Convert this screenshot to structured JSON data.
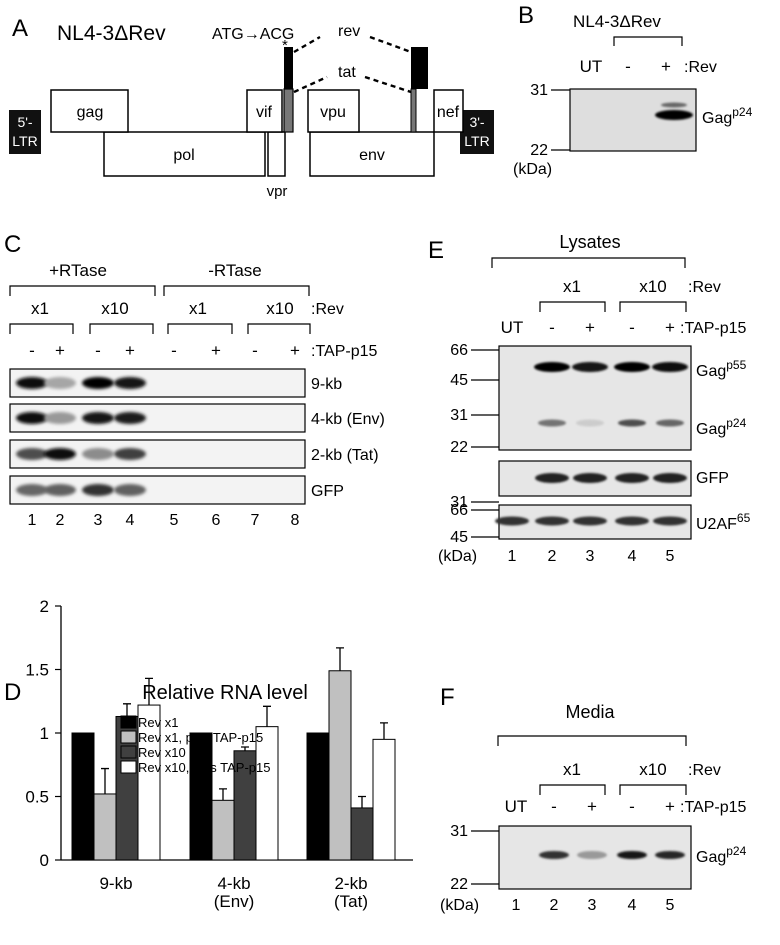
{
  "panelA": {
    "label": "A",
    "title": "NL4-3ΔRev",
    "mutation": "ATG→ACG",
    "asterisk": "*",
    "rev_label": "rev",
    "tat_label": "tat",
    "ltr5": [
      "5'-",
      "LTR"
    ],
    "ltr3": [
      "3'-",
      "LTR"
    ],
    "genes": {
      "gag": "gag",
      "pol": "pol",
      "vif": "vif",
      "vpr": "vpr",
      "vpu": "vpu",
      "env": "env",
      "nef": "nef"
    }
  },
  "panelB": {
    "label": "B",
    "title": "NL4-3ΔRev",
    "lanes": [
      "UT",
      "-",
      "+"
    ],
    "row_label": ":Rev",
    "markers": [
      "31",
      "22",
      "(kDa)"
    ],
    "band": "Gag",
    "band_sup": "p24"
  },
  "panelC": {
    "label": "C",
    "groups": [
      "+RTase",
      "-RTase"
    ],
    "rev": [
      "x1",
      "x10",
      "x1",
      "x10"
    ],
    "rev_label": ":Rev",
    "tap": [
      "-",
      "+",
      "-",
      "+",
      "-",
      "+",
      "-",
      "+"
    ],
    "tap_label": ":TAP-p15",
    "rows": [
      "9-kb",
      "4-kb (Env)",
      "2-kb (Tat)",
      "GFP"
    ],
    "lane_numbers": [
      "1",
      "2",
      "3",
      "4",
      "5",
      "6",
      "7",
      "8"
    ]
  },
  "panelD": {
    "label": "D"
  },
  "chart_data": {
    "type": "bar",
    "title": "Relative RNA level",
    "categories": [
      "9-kb",
      "4-kb (Env)",
      "2-kb (Tat)"
    ],
    "series": [
      {
        "name": "Rev x1",
        "color": "#000000",
        "values": [
          1.0,
          1.0,
          1.0
        ],
        "errors": [
          0,
          0,
          0
        ]
      },
      {
        "name": "Rev x1, plus TAP-p15",
        "color": "#c0c0c0",
        "values": [
          0.52,
          0.47,
          1.49
        ],
        "errors": [
          0.2,
          0.09,
          0.18
        ]
      },
      {
        "name": "Rev x10",
        "color": "#404040",
        "values": [
          1.13,
          0.86,
          0.41
        ],
        "errors": [
          0.1,
          0.03,
          0.09
        ]
      },
      {
        "name": "Rev x10, plus TAP-p15",
        "color": "#ffffff",
        "values": [
          1.22,
          1.05,
          0.95
        ],
        "errors": [
          0.21,
          0.16,
          0.13
        ]
      }
    ],
    "yticks": [
      "0",
      "0.5",
      "1",
      "1.5",
      "2"
    ],
    "ylim": [
      0,
      2
    ],
    "legend": "top-left",
    "grid": false
  },
  "panelE": {
    "label": "E",
    "header": "Lysates",
    "rev": [
      "x1",
      "x10"
    ],
    "rev_label": ":Rev",
    "lanes": [
      "UT",
      "-",
      "+",
      "-",
      "+"
    ],
    "tap_label": ":TAP-p15",
    "markers_main": [
      "66",
      "45",
      "31",
      "22"
    ],
    "bands": [
      [
        "Gag",
        "p55"
      ],
      [
        "Gag",
        "p24"
      ]
    ],
    "gfp_label": "GFP",
    "gfp_marker": "31",
    "u2af_label": "U2AF",
    "u2af_sup": "65",
    "markers_u2af": [
      "66",
      "45"
    ],
    "kda": "(kDa)",
    "lane_numbers": [
      "1",
      "2",
      "3",
      "4",
      "5"
    ]
  },
  "panelF": {
    "label": "F",
    "header": "Media",
    "rev": [
      "x1",
      "x10"
    ],
    "rev_label": ":Rev",
    "lanes": [
      "UT",
      "-",
      "+",
      "-",
      "+"
    ],
    "tap_label": ":TAP-p15",
    "markers": [
      "31",
      "22"
    ],
    "kda": "(kDa)",
    "band": "Gag",
    "band_sup": "p24",
    "lane_numbers": [
      "1",
      "2",
      "3",
      "4",
      "5"
    ]
  }
}
